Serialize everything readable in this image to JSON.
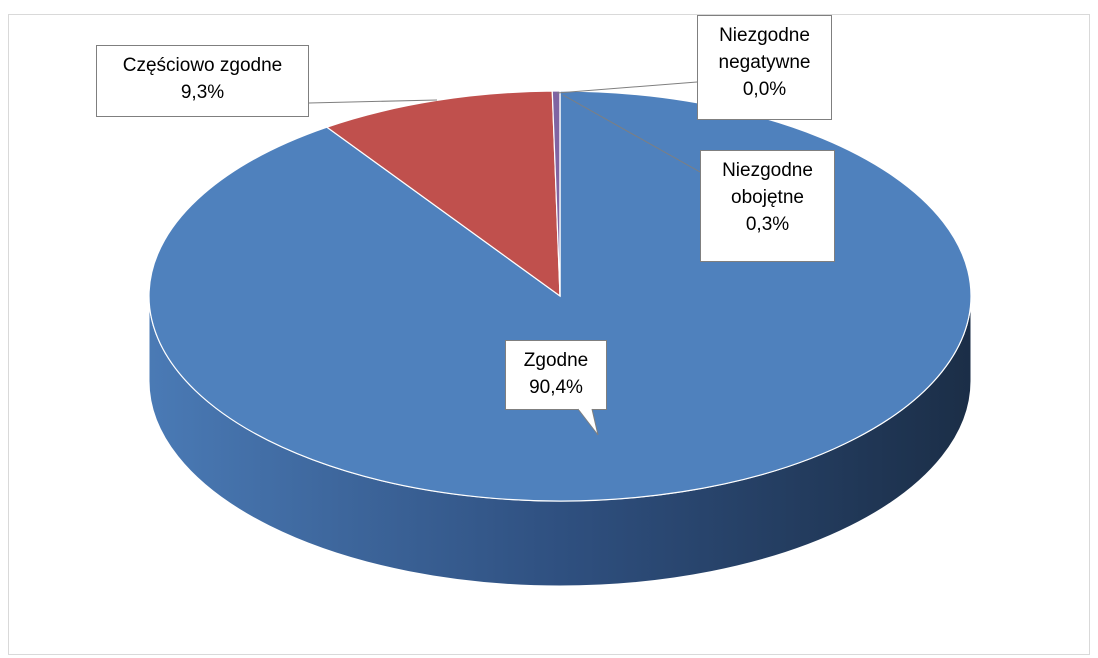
{
  "chart_data": {
    "type": "pie",
    "categories": [
      "Zgodne",
      "Częściowo zgodne",
      "Niezgodne obojętne",
      "Niezgodne negatywne"
    ],
    "values": [
      90.4,
      9.3,
      0.3,
      0.0
    ],
    "value_labels": [
      "90,4%",
      "9,3%",
      "0,3%",
      "0,0%"
    ],
    "colors": [
      "#4f81bd",
      "#c0504d",
      "#8064a2",
      "#9bbb59"
    ]
  }
}
